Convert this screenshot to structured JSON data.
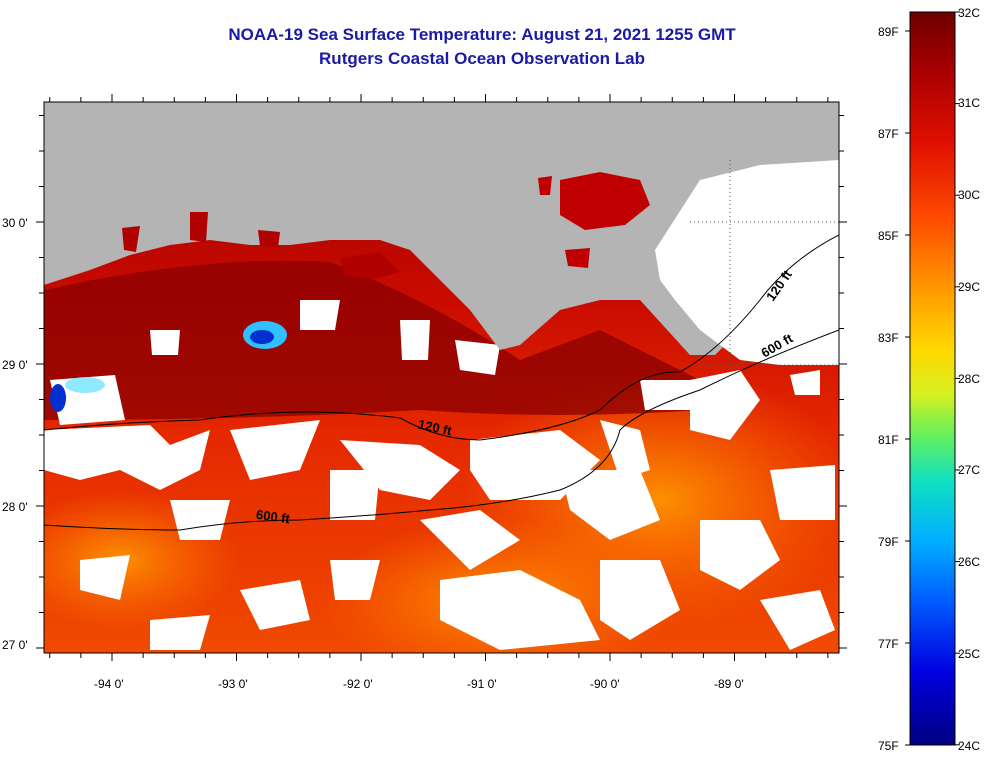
{
  "title_line1": "NOAA-19 Sea Surface Temperature:  August 21, 2021 1255 GMT",
  "title_line2": "Rutgers Coastal Ocean Observation Lab",
  "latitude_labels": [
    "30 0'",
    "29 0'",
    "28 0'",
    "27 0'"
  ],
  "longitude_labels": [
    "-94 0'",
    "-93 0'",
    "-92 0'",
    "-91 0'",
    "-90 0'",
    "-89 0'"
  ],
  "contour_labels": {
    "inner_120_west": "120 ft",
    "inner_600_west": "600 ft",
    "inner_120_east": "120 ft",
    "inner_600_east": "600 ft"
  },
  "colorbar": {
    "fahrenheit_labels": [
      "89F",
      "87F",
      "85F",
      "83F",
      "81F",
      "79F",
      "77F",
      "75F"
    ],
    "celsius_labels": [
      "32C",
      "31C",
      "30C",
      "29C",
      "28C",
      "27C",
      "26C",
      "25C",
      "24C"
    ]
  },
  "colors": {
    "land": "#b4b4b4",
    "cloud": "#ffffff",
    "title": "#1a1aa6"
  }
}
